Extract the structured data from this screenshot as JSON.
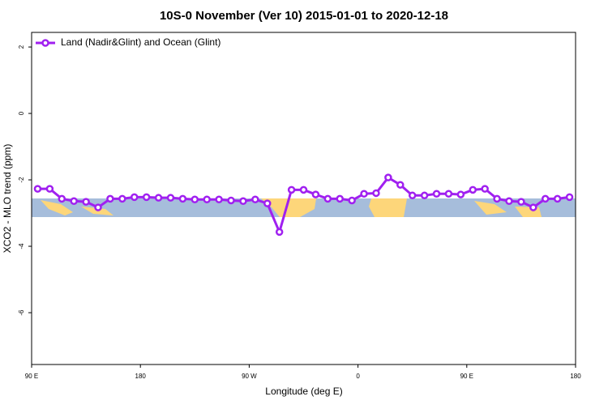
{
  "chart_data": {
    "type": "line",
    "title": "10S-0 November (Ver 10)   2015-01-01 to 2020-12-18",
    "x_label": "Longitude (deg E)",
    "y_label": "XCO2 - MLO trend (ppm)",
    "xlim": [
      90,
      540
    ],
    "ylim": [
      -7.56,
      2.44
    ],
    "xticks": [
      {
        "value": 90,
        "label": "90 E"
      },
      {
        "value": 180,
        "label": "180"
      },
      {
        "value": 270,
        "label": "90 W"
      },
      {
        "value": 360,
        "label": "0"
      },
      {
        "value": 450,
        "label": "90 E"
      },
      {
        "value": 540,
        "label": "180"
      }
    ],
    "yticks": [
      2,
      0,
      -2,
      -4,
      -6
    ],
    "legend_position": "top-left",
    "x": [
      95,
      105,
      115,
      125,
      135,
      145,
      155,
      165,
      175,
      185,
      195,
      205,
      215,
      225,
      235,
      245,
      255,
      265,
      275,
      285,
      295,
      305,
      315,
      325,
      335,
      345,
      355,
      365,
      375,
      385,
      395,
      405,
      415,
      425,
      435,
      445,
      455,
      465,
      475,
      485,
      495,
      505,
      515,
      525,
      535
    ],
    "series": [
      {
        "name": "Land (Nadir&Glint) and Ocean (Glint)",
        "color": "#a020f0",
        "values": [
          -2.27,
          -2.27,
          -2.57,
          -2.64,
          -2.66,
          -2.83,
          -2.57,
          -2.57,
          -2.52,
          -2.52,
          -2.54,
          -2.54,
          -2.57,
          -2.59,
          -2.59,
          -2.59,
          -2.62,
          -2.64,
          -2.59,
          -2.71,
          -3.57,
          -2.3,
          -2.3,
          -2.44,
          -2.57,
          -2.57,
          -2.62,
          -2.42,
          -2.4,
          -1.93,
          -2.15,
          -2.47,
          -2.47,
          -2.42,
          -2.42,
          -2.44,
          -2.3,
          -2.27,
          -2.57,
          -2.64,
          -2.66,
          -2.83,
          -2.57,
          -2.57,
          -2.52
        ]
      }
    ]
  }
}
